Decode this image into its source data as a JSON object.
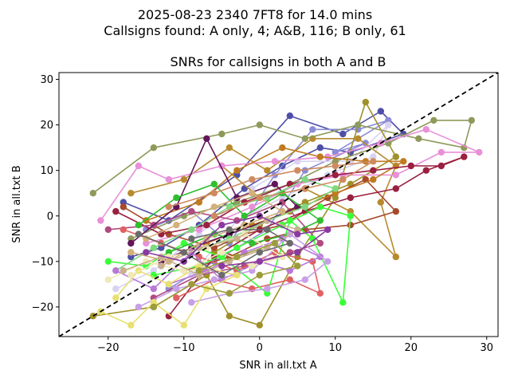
{
  "figure": {
    "suptitle_line1": "2025-08-23 2340 7FT8 for 14.0 mins",
    "suptitle_line2": "Callsigns found: A only, 4; A&B, 116; B only, 61"
  },
  "chart_data": {
    "type": "line",
    "title": "SNRs for callsigns in both A and B",
    "xlabel": "SNR in all.txt A",
    "ylabel": "SNR in all.txt B",
    "xlim": [
      -26.5,
      31.5
    ],
    "ylim": [
      -26.5,
      31.5
    ],
    "xticks": [
      -20,
      -10,
      0,
      10,
      20,
      30
    ],
    "yticks": [
      -20,
      -10,
      0,
      10,
      20,
      30
    ],
    "grid": false,
    "legend": "none",
    "reference_line": {
      "style": "dashed",
      "color": "#000000",
      "from": [
        -26.5,
        -26.5
      ],
      "to": [
        31.5,
        31.5
      ]
    },
    "series": [
      {
        "color": "#4f4fa8",
        "points": [
          [
            -18,
            3
          ],
          [
            -12,
            -1
          ],
          [
            -3,
            9
          ],
          [
            4,
            22
          ],
          [
            11,
            18
          ],
          [
            16,
            23
          ],
          [
            19,
            18
          ],
          [
            12,
            14
          ],
          [
            8,
            15
          ],
          [
            3,
            11
          ],
          [
            -2,
            6
          ],
          [
            -8,
            -2
          ],
          [
            -13,
            -7
          ],
          [
            -17,
            -9
          ]
        ]
      },
      {
        "color": "#8b8bd6",
        "points": [
          [
            -15,
            -3
          ],
          [
            -9,
            1
          ],
          [
            -4,
            -6
          ],
          [
            2,
            9
          ],
          [
            7,
            19
          ],
          [
            13,
            19
          ],
          [
            17,
            21
          ],
          [
            10,
            14
          ],
          [
            14,
            16
          ],
          [
            6,
            10
          ],
          [
            1,
            -3
          ],
          [
            -6,
            -10
          ],
          [
            -12,
            -16
          ]
        ]
      },
      {
        "color": "#d9d2f2",
        "points": [
          [
            -19,
            -16
          ],
          [
            -14,
            -12
          ],
          [
            -8,
            -4
          ],
          [
            -1,
            6
          ],
          [
            5,
            12
          ],
          [
            12,
            12
          ],
          [
            17,
            20
          ],
          [
            15,
            13
          ],
          [
            9,
            9
          ],
          [
            3,
            4
          ],
          [
            -3,
            -1
          ],
          [
            -9,
            -13
          ]
        ]
      },
      {
        "color": "#a0902a",
        "points": [
          [
            -22,
            -22
          ],
          [
            -14,
            -20
          ],
          [
            -7,
            -13
          ],
          [
            -4,
            -22
          ],
          [
            0,
            -24
          ],
          [
            5,
            -9
          ],
          [
            10,
            4
          ],
          [
            14,
            25
          ],
          [
            18,
            13
          ],
          [
            12,
            7
          ],
          [
            6,
            3
          ],
          [
            0,
            -2
          ],
          [
            -6,
            -8
          ]
        ]
      },
      {
        "color": "#b88a2e",
        "points": [
          [
            -17,
            5
          ],
          [
            -10,
            8
          ],
          [
            -4,
            15
          ],
          [
            1,
            10
          ],
          [
            7,
            17
          ],
          [
            13,
            17
          ],
          [
            18,
            11
          ],
          [
            16,
            3
          ],
          [
            18,
            -9
          ],
          [
            12,
            1
          ],
          [
            6,
            6
          ],
          [
            0,
            4
          ],
          [
            -5,
            11
          ]
        ]
      },
      {
        "color": "#8e9a5a",
        "points": [
          [
            -22,
            5
          ],
          [
            -14,
            15
          ],
          [
            -5,
            18
          ],
          [
            0,
            20
          ],
          [
            6,
            17
          ],
          [
            13,
            20
          ],
          [
            21,
            17
          ],
          [
            27,
            15
          ],
          [
            28,
            21
          ],
          [
            23,
            21
          ],
          [
            17,
            16
          ],
          [
            10,
            12
          ],
          [
            4,
            7
          ],
          [
            -3,
            3
          ],
          [
            -10,
            0
          ],
          [
            -17,
            -5
          ]
        ]
      },
      {
        "color": "#e890d8",
        "points": [
          [
            -21,
            -1
          ],
          [
            -16,
            11
          ],
          [
            -12,
            8
          ],
          [
            -5,
            11
          ],
          [
            2,
            12
          ],
          [
            9,
            13
          ],
          [
            16,
            16
          ],
          [
            22,
            19
          ],
          [
            29,
            14
          ],
          [
            24,
            14
          ],
          [
            18,
            9
          ],
          [
            11,
            9
          ],
          [
            5,
            7
          ],
          [
            -1,
            2
          ],
          [
            -8,
            -3
          ],
          [
            -15,
            -6
          ]
        ]
      },
      {
        "color": "#a64a2a",
        "points": [
          [
            -18,
            2
          ],
          [
            -12,
            -4
          ],
          [
            -6,
            -7
          ],
          [
            -2,
            -4
          ],
          [
            3,
            -2
          ],
          [
            9,
            4
          ],
          [
            14,
            8
          ],
          [
            18,
            1
          ],
          [
            12,
            -2
          ],
          [
            6,
            -3
          ],
          [
            1,
            -5
          ],
          [
            -4,
            -9
          ],
          [
            -10,
            -12
          ]
        ]
      },
      {
        "color": "#c07a20",
        "points": [
          [
            -15,
            -1
          ],
          [
            -8,
            3
          ],
          [
            -3,
            10
          ],
          [
            3,
            15
          ],
          [
            8,
            13
          ],
          [
            14,
            12
          ],
          [
            19,
            12
          ],
          [
            15,
            8
          ],
          [
            10,
            5
          ],
          [
            4,
            1
          ],
          [
            -1,
            -2
          ],
          [
            -7,
            -6
          ]
        ]
      },
      {
        "color": "#9a2040",
        "points": [
          [
            -19,
            1
          ],
          [
            -13,
            -4
          ],
          [
            -7,
            -2
          ],
          [
            -2,
            3
          ],
          [
            4,
            7
          ],
          [
            10,
            9
          ],
          [
            15,
            10
          ],
          [
            20,
            11
          ],
          [
            24,
            11
          ],
          [
            27,
            13
          ],
          [
            22,
            10
          ],
          [
            18,
            6
          ],
          [
            12,
            4
          ],
          [
            6,
            1
          ],
          [
            0,
            -3
          ],
          [
            -6,
            -9
          ],
          [
            -12,
            -22
          ]
        ]
      },
      {
        "color": "#b04a80",
        "points": [
          [
            -20,
            -3
          ],
          [
            -14,
            -2
          ],
          [
            -9,
            1
          ],
          [
            -3,
            -1
          ],
          [
            3,
            3
          ],
          [
            8,
            -6
          ],
          [
            4,
            -8
          ],
          [
            -2,
            -11
          ],
          [
            -8,
            -13
          ],
          [
            -14,
            -18
          ]
        ]
      },
      {
        "color": "#62155a",
        "points": [
          [
            -17,
            -6
          ],
          [
            -11,
            2
          ],
          [
            -7,
            17
          ],
          [
            -3,
            4
          ],
          [
            2,
            7
          ],
          [
            5,
            2
          ],
          [
            1,
            -1
          ],
          [
            -4,
            -4
          ],
          [
            -9,
            -7
          ],
          [
            -13,
            -10
          ]
        ]
      },
      {
        "color": "#e06060",
        "points": [
          [
            -18,
            -3
          ],
          [
            -13,
            -6
          ],
          [
            -8,
            -9
          ],
          [
            -3,
            -12
          ],
          [
            2,
            -8
          ],
          [
            7,
            -10
          ],
          [
            8,
            -17
          ],
          [
            4,
            -14
          ],
          [
            -1,
            -16
          ],
          [
            -6,
            -14
          ],
          [
            -11,
            -18
          ]
        ]
      },
      {
        "color": "#3aff3a",
        "points": [
          [
            -20,
            -10
          ],
          [
            -15,
            -11
          ],
          [
            -10,
            -6
          ],
          [
            -5,
            -9
          ],
          [
            1,
            -17
          ],
          [
            4,
            -1
          ],
          [
            7,
            -5
          ],
          [
            11,
            -19
          ],
          [
            12,
            0
          ],
          [
            8,
            2
          ],
          [
            3,
            -2
          ],
          [
            -3,
            -7
          ],
          [
            -8,
            -11
          ],
          [
            -14,
            -13
          ]
        ]
      },
      {
        "color": "#2fbf2f",
        "points": [
          [
            -16,
            -2
          ],
          [
            -11,
            4
          ],
          [
            -6,
            7
          ],
          [
            -2,
            0
          ],
          [
            3,
            5
          ],
          [
            8,
            -1
          ],
          [
            4,
            -4
          ],
          [
            -1,
            -6
          ],
          [
            -6,
            -4
          ],
          [
            -12,
            -8
          ]
        ]
      },
      {
        "color": "#7fd87f",
        "points": [
          [
            -19,
            -12
          ],
          [
            -14,
            -7
          ],
          [
            -9,
            -3
          ],
          [
            -4,
            2
          ],
          [
            1,
            4
          ],
          [
            6,
            8
          ],
          [
            10,
            6
          ],
          [
            6,
            2
          ],
          [
            1,
            -1
          ],
          [
            -4,
            -5
          ],
          [
            -9,
            -8
          ]
        ]
      },
      {
        "color": "#b878d8",
        "points": [
          [
            -19,
            -12
          ],
          [
            -14,
            -16
          ],
          [
            -9,
            -8
          ],
          [
            -5,
            -14
          ],
          [
            0,
            -10
          ],
          [
            4,
            -12
          ],
          [
            8,
            -9
          ],
          [
            3,
            -5
          ],
          [
            -2,
            -8
          ],
          [
            -7,
            -12
          ],
          [
            -12,
            -15
          ]
        ]
      },
      {
        "color": "#c8a0e8",
        "points": [
          [
            -16,
            -20
          ],
          [
            -11,
            -16
          ],
          [
            -6,
            -14
          ],
          [
            -1,
            -12
          ],
          [
            4,
            -4
          ],
          [
            9,
            -10
          ],
          [
            6,
            -14
          ],
          [
            1,
            -16
          ],
          [
            -4,
            -17
          ],
          [
            -9,
            -19
          ]
        ]
      },
      {
        "color": "#e8e070",
        "points": [
          [
            -21,
            -21
          ],
          [
            -17,
            -24
          ],
          [
            -14,
            -19
          ],
          [
            -10,
            -24
          ],
          [
            -7,
            -16
          ],
          [
            -3,
            -13
          ],
          [
            -8,
            -11
          ],
          [
            -12,
            -15
          ],
          [
            -16,
            -12
          ],
          [
            -19,
            -18
          ]
        ]
      },
      {
        "color": "#f0e8b8",
        "points": [
          [
            -20,
            -14
          ],
          [
            -15,
            -10
          ],
          [
            -10,
            -12
          ],
          [
            -5,
            -8
          ],
          [
            -1,
            -11
          ],
          [
            3,
            -9
          ],
          [
            -2,
            -4
          ],
          [
            -7,
            -7
          ],
          [
            -12,
            -9
          ],
          [
            -17,
            -13
          ]
        ]
      },
      {
        "color": "#d4b07a",
        "points": [
          [
            -17,
            -8
          ],
          [
            -12,
            -10
          ],
          [
            -7,
            -5
          ],
          [
            -2,
            -2
          ],
          [
            3,
            1
          ],
          [
            -1,
            5
          ],
          [
            -6,
            2
          ],
          [
            -11,
            -2
          ],
          [
            -15,
            -5
          ]
        ]
      },
      {
        "color": "#c9b090",
        "points": [
          [
            -18,
            -12
          ],
          [
            -13,
            -9
          ],
          [
            -8,
            -13
          ],
          [
            -4,
            -10
          ],
          [
            1,
            -7
          ],
          [
            5,
            -3
          ],
          [
            1,
            -1
          ],
          [
            -3,
            -5
          ],
          [
            -8,
            -7
          ],
          [
            -13,
            -11
          ]
        ]
      },
      {
        "color": "#6b6b6b",
        "points": [
          [
            -16,
            -4
          ],
          [
            -10,
            -8
          ],
          [
            -5,
            -13
          ],
          [
            0,
            -8
          ],
          [
            4,
            -6
          ],
          [
            1,
            -3
          ],
          [
            -4,
            -3
          ],
          [
            -9,
            -5
          ]
        ]
      },
      {
        "color": "#9c9c3a",
        "points": [
          [
            -14,
            -20
          ],
          [
            -9,
            -15
          ],
          [
            -4,
            -17
          ],
          [
            0,
            -13
          ],
          [
            5,
            -11
          ],
          [
            2,
            -6
          ],
          [
            -3,
            -9
          ],
          [
            -8,
            -12
          ]
        ]
      },
      {
        "color": "#d08a60",
        "points": [
          [
            -12,
            2
          ],
          [
            -6,
            5
          ],
          [
            -1,
            8
          ],
          [
            5,
            10
          ],
          [
            10,
            11
          ],
          [
            15,
            12
          ],
          [
            11,
            8
          ],
          [
            6,
            6
          ],
          [
            0,
            4
          ],
          [
            -6,
            0
          ]
        ]
      },
      {
        "color": "#8a3aa0",
        "points": [
          [
            -15,
            -8
          ],
          [
            -10,
            -10
          ],
          [
            -5,
            -2
          ],
          [
            0,
            0
          ],
          [
            5,
            -4
          ],
          [
            9,
            -3
          ],
          [
            5,
            -8
          ],
          [
            0,
            -10
          ],
          [
            -5,
            -11
          ]
        ]
      }
    ]
  }
}
